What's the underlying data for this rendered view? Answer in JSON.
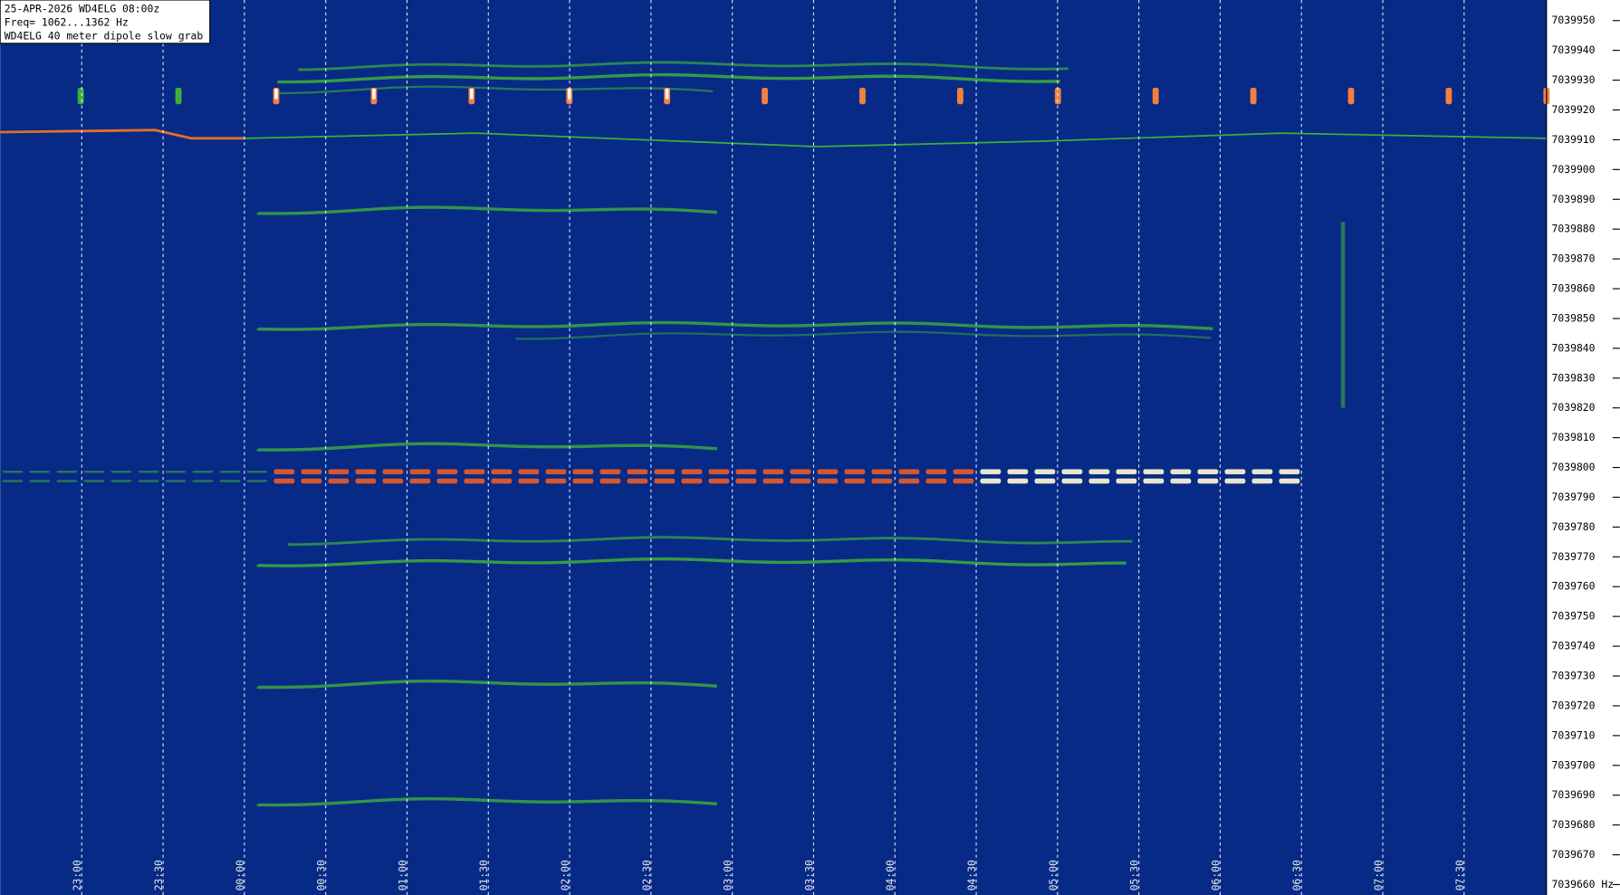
{
  "chart_data": {
    "type": "waterfall",
    "header": [
      "25-APR-2026  WD4ELG  08:00z",
      "Freq= 1062...1362 Hz",
      "WD4ELG 40 meter dipole slow grab"
    ],
    "categories": [
      "23:00",
      "23:30",
      "00:00",
      "00:30",
      "01:00",
      "01:30",
      "02:00",
      "02:30",
      "03:00",
      "03:30",
      "04:00",
      "04:30",
      "05:00",
      "05:30",
      "06:00",
      "06:30",
      "07:00",
      "07:30"
    ],
    "ylim": [
      7039656.5,
      7039956.9
    ],
    "yticks": [
      {
        "value": 7039660,
        "label": "7039660 Hz"
      },
      7039670,
      7039680,
      7039690,
      7039700,
      7039710,
      7039720,
      7039730,
      7039740,
      7039750,
      7039760,
      7039770,
      7039780,
      7039790,
      7039800,
      7039810,
      7039820,
      7039830,
      7039840,
      7039850,
      7039860,
      7039870,
      7039880,
      7039890,
      7039900,
      7039910,
      7039920,
      7039930,
      7039940,
      7039950
    ],
    "grid": true,
    "background": "#062a86",
    "trace_color": "#3fae3a"
  }
}
